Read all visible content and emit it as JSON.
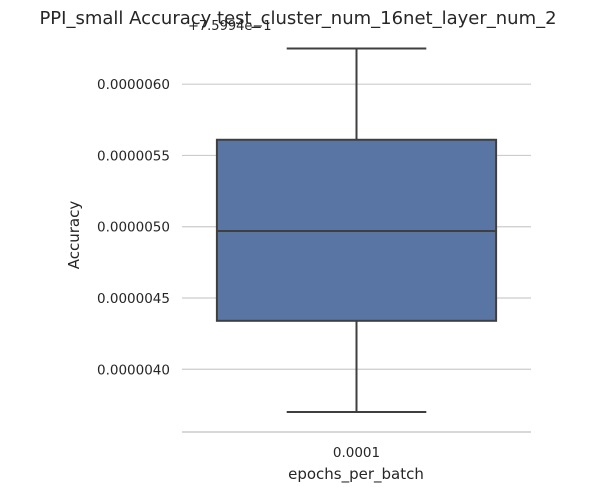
{
  "chart_data": {
    "type": "box",
    "title": "PPI_small Accuracy test_cluster_num_16net_layer_num_2",
    "xlabel": "epochs_per_batch",
    "ylabel": "Accuracy",
    "y_offset_label": "+7.5994e−1",
    "categories": [
      "0.0001"
    ],
    "ytick_values": [
      4e-06,
      4.5e-06,
      5e-06,
      5.5e-06,
      6e-06
    ],
    "ytick_labels": [
      "0.0000040",
      "0.0000045",
      "0.0000050",
      "0.0000055",
      "0.0000060"
    ],
    "ylim": [
      3.56e-06,
      6.38e-06
    ],
    "grid": "horizontal",
    "box_color": "#5975a4",
    "line_color": "#3f3f3f",
    "boxes": [
      {
        "category": "0.0001",
        "whisker_low": 3.7e-06,
        "q1": 4.34e-06,
        "median": 4.97e-06,
        "q3": 5.61e-06,
        "whisker_high": 6.25e-06
      }
    ]
  }
}
